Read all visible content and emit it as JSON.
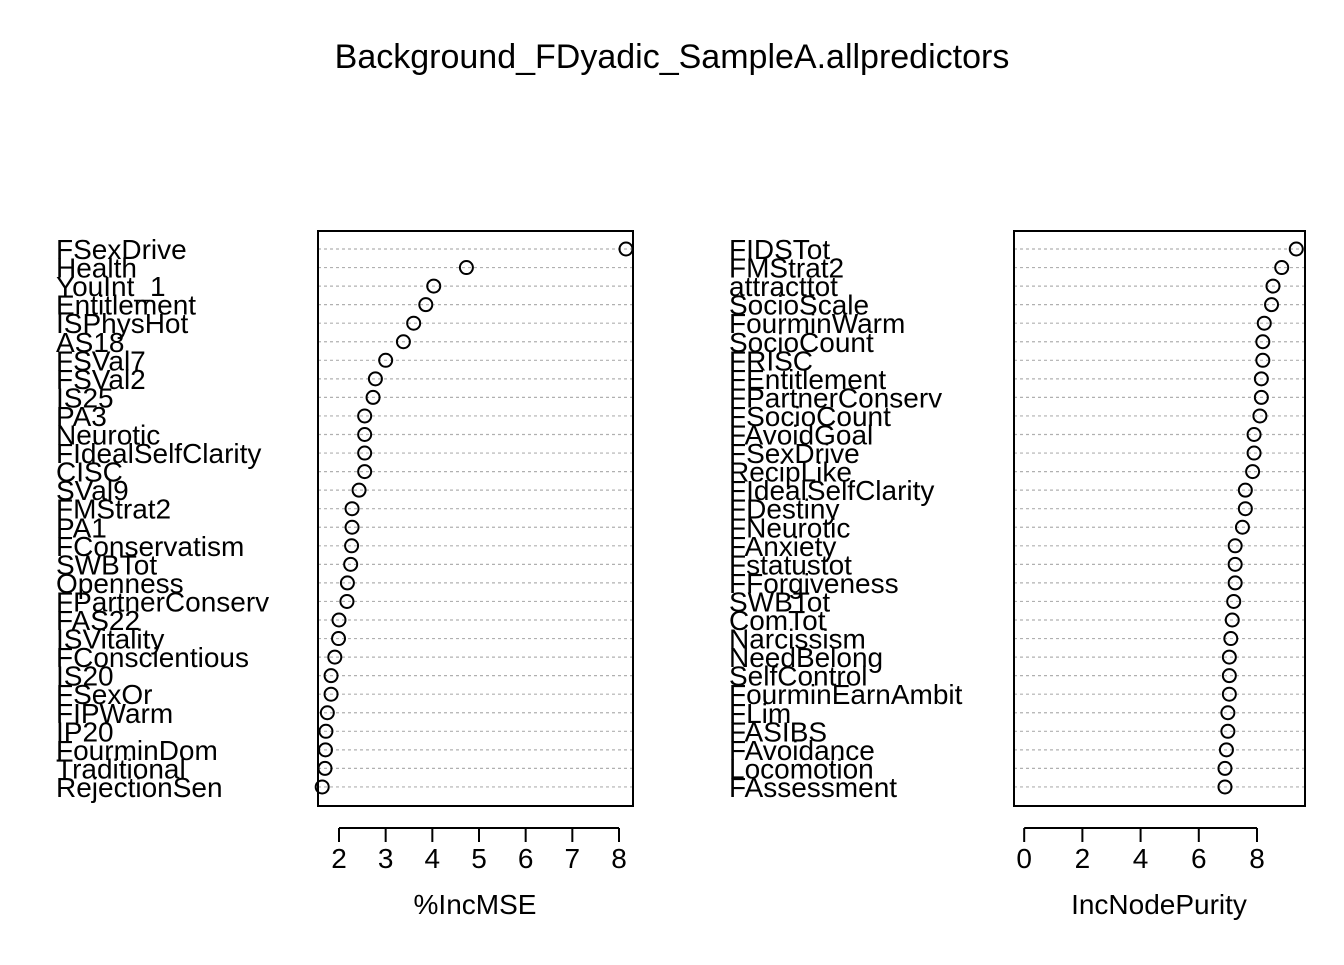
{
  "chart_data": [
    {
      "type": "scatter",
      "title": "Background_FDyadic_SampleA.allpredictors",
      "xlabel": "%IncMSE",
      "xlim": [
        1.55,
        8.3
      ],
      "xticks": [
        2,
        3,
        4,
        5,
        6,
        7,
        8
      ],
      "tick_labels": [
        "2",
        "3",
        "4",
        "5",
        "6",
        "7",
        "8"
      ],
      "grid": true,
      "categories": [
        "FSexDrive",
        "Health",
        "YouInt_1",
        "Entitlement",
        "ISPhysHot",
        "AS18",
        "FSVal7",
        "FSVal2",
        "IS25",
        "PA3",
        "Neurotic",
        "FIdealSelfClarity",
        "CISC",
        "SVal9",
        "FMStrat2",
        "PA1",
        "FConservatism",
        "SWBTot",
        "Openness",
        "FPartnerConserv",
        "FAS22",
        "ISVitality",
        "FConscientious",
        "IS20",
        "FSexOr",
        "FIPWarm",
        "IP20",
        "FourminDom",
        "Traditional",
        "RejectionSen"
      ],
      "values": [
        8.15,
        4.73,
        4.03,
        3.86,
        3.6,
        3.38,
        3.0,
        2.78,
        2.73,
        2.55,
        2.55,
        2.55,
        2.55,
        2.43,
        2.28,
        2.28,
        2.27,
        2.25,
        2.18,
        2.17,
        2.0,
        1.99,
        1.91,
        1.83,
        1.83,
        1.75,
        1.72,
        1.71,
        1.7,
        1.64
      ]
    },
    {
      "type": "scatter",
      "title": "",
      "xlabel": "IncNodePurity",
      "xlim": [
        -0.35,
        9.65
      ],
      "xticks": [
        0,
        2,
        4,
        6,
        8
      ],
      "tick_labels": [
        "0",
        "2",
        "4",
        "6",
        "8"
      ],
      "grid": true,
      "categories": [
        "FIDSTot",
        "FMStrat2",
        "attracttot",
        "SocioScale",
        "FourminWarm",
        "SocioCount",
        "FRISC",
        "FEntitlement",
        "FPartnerConserv",
        "FSocioCount",
        "FAvoidGoal",
        "FSexDrive",
        "RecipLike",
        "FIdealSelfClarity",
        "FDestiny",
        "FNeurotic",
        "FAnxiety",
        "Fstatustot",
        "FForgiveness",
        "SWBTot",
        "ComTot",
        "Narcissism",
        "NeedBelong",
        "SelfControl",
        "FourminEarnAmbit",
        "FLim",
        "FASIBS",
        "FAvoidance",
        "Locomotion",
        "FAssessment"
      ],
      "values": [
        9.35,
        8.85,
        8.55,
        8.5,
        8.25,
        8.2,
        8.2,
        8.15,
        8.15,
        8.1,
        7.9,
        7.9,
        7.85,
        7.6,
        7.6,
        7.5,
        7.25,
        7.25,
        7.25,
        7.2,
        7.15,
        7.1,
        7.05,
        7.05,
        7.05,
        7.0,
        7.0,
        6.95,
        6.9,
        6.9
      ]
    }
  ]
}
